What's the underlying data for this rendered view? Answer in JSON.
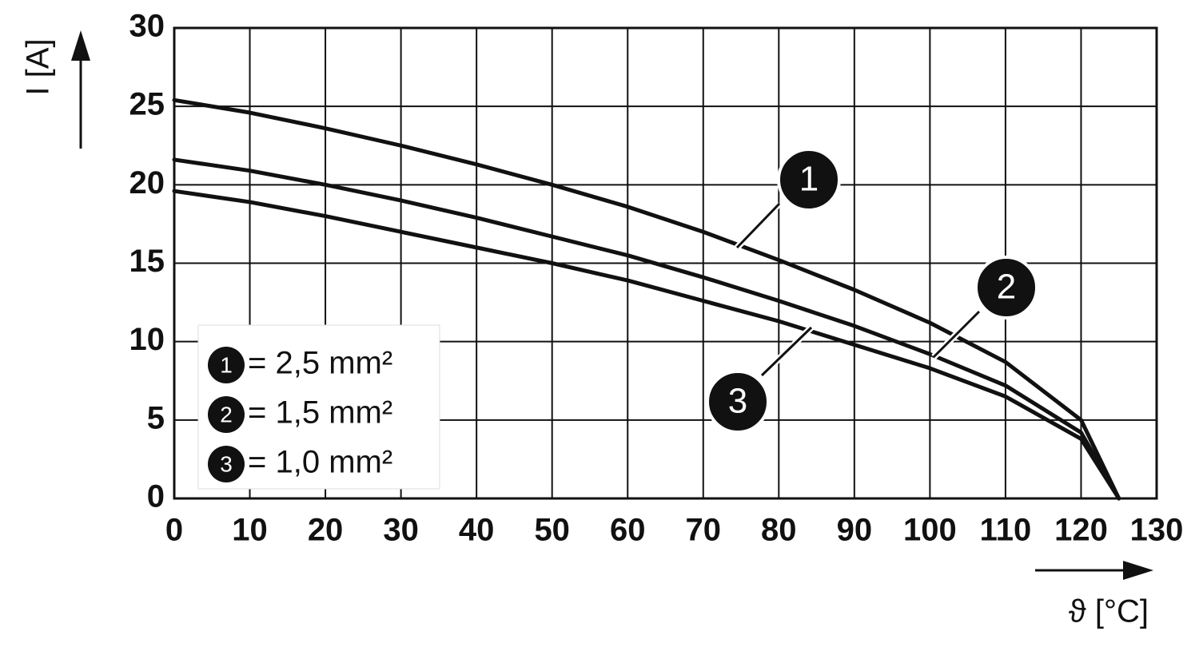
{
  "chart_data": {
    "type": "line",
    "x_label": "ϑ [°C]",
    "y_label": "I [A]",
    "x": [
      0,
      10,
      20,
      30,
      40,
      50,
      60,
      70,
      80,
      90,
      100,
      110,
      120,
      125
    ],
    "series": [
      {
        "name": "= 2,5 mm²",
        "label": "1",
        "color": "#111111",
        "values": [
          25.4,
          24.6,
          23.6,
          22.5,
          21.3,
          20.0,
          18.6,
          17.0,
          15.2,
          13.3,
          11.2,
          8.7,
          5.0,
          0
        ]
      },
      {
        "name": "= 1,5 mm²",
        "label": "2",
        "color": "#111111",
        "values": [
          21.6,
          20.9,
          20.0,
          19.0,
          17.9,
          16.7,
          15.5,
          14.1,
          12.6,
          11.0,
          9.2,
          7.2,
          4.2,
          0
        ]
      },
      {
        "name": "= 1,0 mm²",
        "label": "3",
        "color": "#111111",
        "values": [
          19.6,
          18.9,
          18.0,
          17.0,
          16.0,
          15.0,
          13.9,
          12.6,
          11.3,
          9.8,
          8.3,
          6.5,
          3.8,
          0
        ]
      }
    ],
    "xlim": [
      0,
      130
    ],
    "xticks": [
      0,
      10,
      20,
      30,
      40,
      50,
      60,
      70,
      80,
      90,
      100,
      110,
      120,
      130
    ],
    "ylim": [
      0,
      30
    ],
    "yticks": [
      0,
      5,
      10,
      15,
      20,
      25,
      30
    ],
    "grid": true
  }
}
